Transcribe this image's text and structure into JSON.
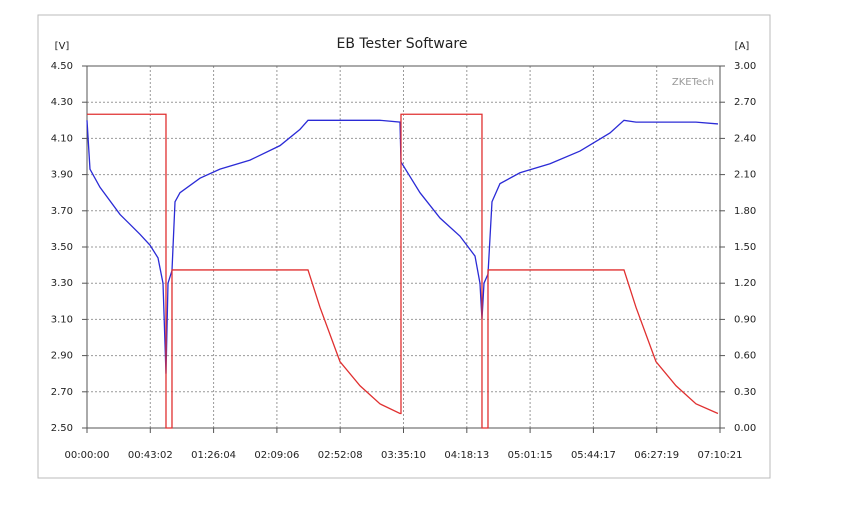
{
  "chart_data": {
    "type": "line",
    "title": "EB Tester Software",
    "y_label": "[V]",
    "y2_label": "[A]",
    "watermark": "ZKETech",
    "x": [
      0,
      122,
      530,
      1346,
      2162,
      2570,
      2896,
      3100,
      3222,
      3222,
      3304,
      3467,
      3467,
      3590,
      3793,
      4609,
      5425,
      6649,
      7872,
      8688,
      9015,
      9504,
      10320,
      11136,
      11951,
      12767,
      12808,
      12808,
      13583,
      14399,
      15215,
      15827,
      16030,
      16112,
      16112,
      16194,
      16357,
      16357,
      16520,
      16846,
      17662,
      18886,
      20109,
      21333,
      21904,
      22394,
      23210,
      24026,
      24841,
      25738
    ],
    "series": [
      {
        "color": "#2b2bd6",
        "values": [
          4.2,
          3.93,
          3.83,
          3.68,
          3.57,
          3.51,
          3.44,
          3.3,
          2.8,
          2.8,
          3.3,
          3.37,
          3.37,
          3.75,
          3.8,
          3.88,
          3.93,
          3.98,
          4.06,
          4.15,
          4.2,
          4.2,
          4.2,
          4.2,
          4.2,
          4.19,
          3.97,
          3.97,
          3.8,
          3.66,
          3.56,
          3.45,
          3.3,
          3.1,
          3.1,
          3.3,
          3.35,
          3.35,
          3.75,
          3.85,
          3.91,
          3.96,
          4.03,
          4.13,
          4.2,
          4.19,
          4.19,
          4.19,
          4.19,
          4.18
        ]
      },
      {
        "color": "#e03030",
        "axis": "y2",
        "values": [
          2.6,
          2.6,
          2.6,
          2.6,
          2.6,
          2.6,
          2.6,
          2.6,
          2.6,
          0.0,
          0.0,
          0.0,
          1.31,
          1.31,
          1.31,
          1.31,
          1.31,
          1.31,
          1.31,
          1.31,
          1.31,
          1.0,
          0.55,
          0.35,
          0.2,
          0.12,
          0.12,
          2.6,
          2.6,
          2.6,
          2.6,
          2.6,
          2.6,
          2.6,
          0.0,
          0.0,
          0.0,
          1.31,
          1.31,
          1.31,
          1.31,
          1.31,
          1.31,
          1.31,
          1.31,
          1.0,
          0.55,
          0.35,
          0.2,
          0.12
        ]
      }
    ],
    "xlim": [
      0,
      25821
    ],
    "xticks": [
      {
        "value": 0,
        "label": "00:00:00"
      },
      {
        "value": 2582,
        "label": "00:43:02"
      },
      {
        "value": 5164,
        "label": "01:26:04"
      },
      {
        "value": 7746,
        "label": "02:09:06"
      },
      {
        "value": 10328,
        "label": "02:52:08"
      },
      {
        "value": 12910,
        "label": "03:35:10"
      },
      {
        "value": 15493,
        "label": "04:18:13"
      },
      {
        "value": 18075,
        "label": "05:01:15"
      },
      {
        "value": 20657,
        "label": "05:44:17"
      },
      {
        "value": 23239,
        "label": "06:27:19"
      },
      {
        "value": 25821,
        "label": "07:10:21"
      }
    ],
    "ylim": [
      2.5,
      4.5
    ],
    "yticks": [
      {
        "value": 2.5,
        "label": "2.50"
      },
      {
        "value": 2.7,
        "label": "2.70"
      },
      {
        "value": 2.9,
        "label": "2.90"
      },
      {
        "value": 3.1,
        "label": "3.10"
      },
      {
        "value": 3.3,
        "label": "3.30"
      },
      {
        "value": 3.5,
        "label": "3.50"
      },
      {
        "value": 3.7,
        "label": "3.70"
      },
      {
        "value": 3.9,
        "label": "3.90"
      },
      {
        "value": 4.1,
        "label": "4.10"
      },
      {
        "value": 4.3,
        "label": "4.30"
      },
      {
        "value": 4.5,
        "label": "4.50"
      }
    ],
    "y2lim": [
      0,
      3
    ],
    "y2ticks": [
      {
        "value": 0,
        "label": "0.00"
      },
      {
        "value": 0.3,
        "label": "0.30"
      },
      {
        "value": 0.6,
        "label": "0.60"
      },
      {
        "value": 0.9,
        "label": "0.90"
      },
      {
        "value": 1.2,
        "label": "1.20"
      },
      {
        "value": 1.5,
        "label": "1.50"
      },
      {
        "value": 1.8,
        "label": "1.80"
      },
      {
        "value": 2.1,
        "label": "2.10"
      },
      {
        "value": 2.4,
        "label": "2.40"
      },
      {
        "value": 2.7,
        "label": "2.70"
      },
      {
        "value": 3,
        "label": "3.00"
      }
    ],
    "grid": true
  }
}
